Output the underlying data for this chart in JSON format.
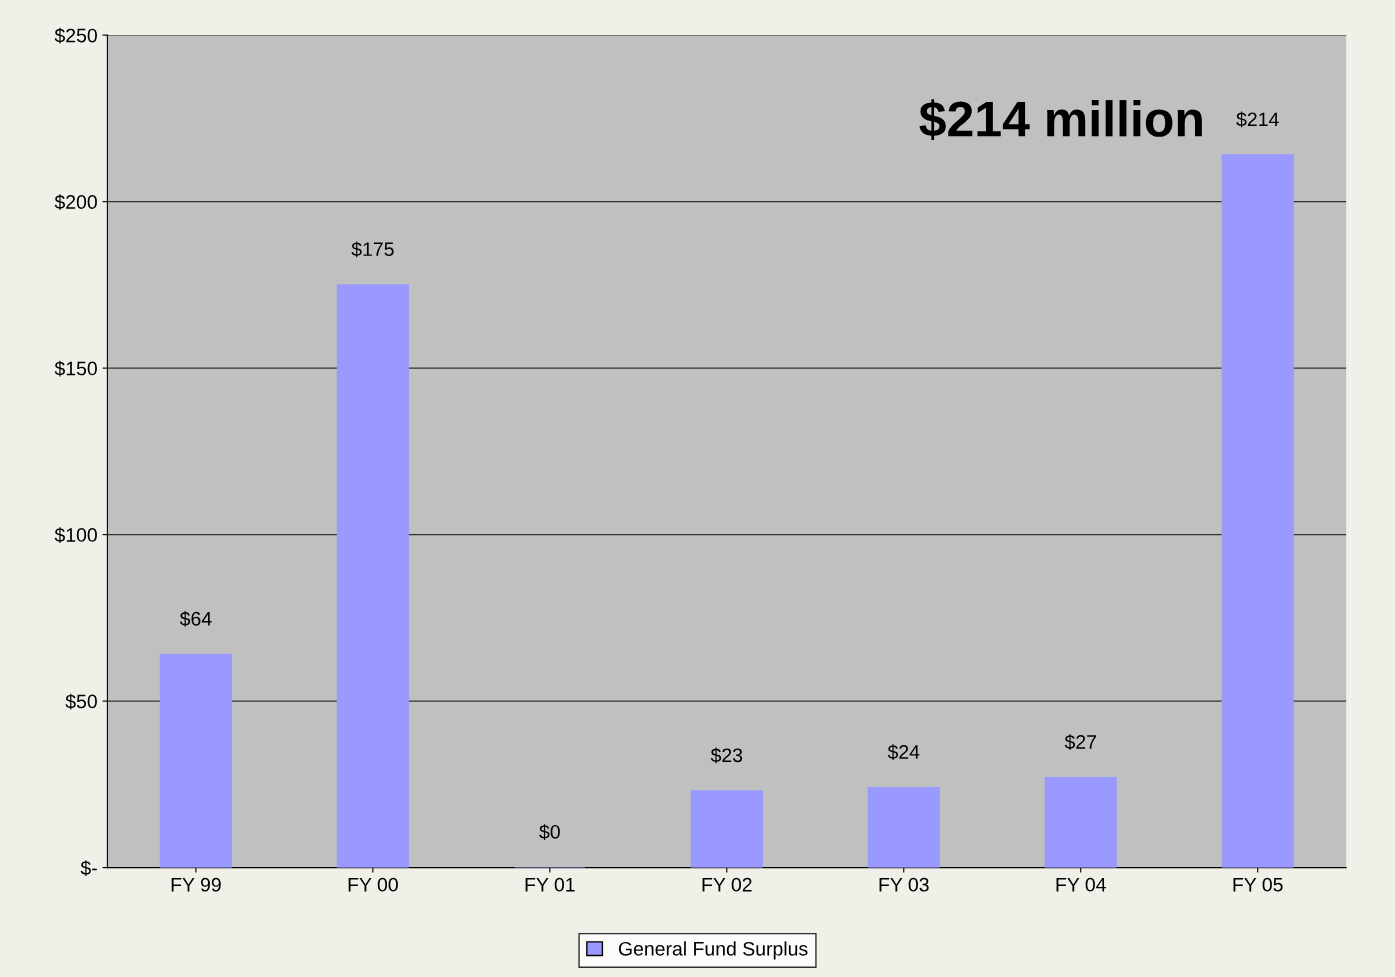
{
  "chart_data": {
    "type": "bar",
    "categories": [
      "FY 99",
      "FY 00",
      "FY 01",
      "FY 02",
      "FY 03",
      "FY 04",
      "FY 05"
    ],
    "series": [
      {
        "name": "General Fund Surplus",
        "color": "#9999ff",
        "values": [
          64,
          175,
          0,
          23,
          24,
          27,
          214
        ],
        "value_labels": [
          "$64",
          "$175",
          "$0",
          "$23",
          "$24",
          "$27",
          "$214"
        ]
      }
    ],
    "ylim": [
      0,
      250
    ],
    "yticks": [
      {
        "value": 0,
        "label": "$-"
      },
      {
        "value": 50,
        "label": "$50"
      },
      {
        "value": 100,
        "label": "$100"
      },
      {
        "value": 150,
        "label": "$150"
      },
      {
        "value": 200,
        "label": "$200"
      },
      {
        "value": 250,
        "label": "$250"
      }
    ],
    "annotations": [
      {
        "text": "$214 million",
        "x": "FY 05",
        "y": 214
      }
    ],
    "grid": "y",
    "legend": "bottom"
  }
}
